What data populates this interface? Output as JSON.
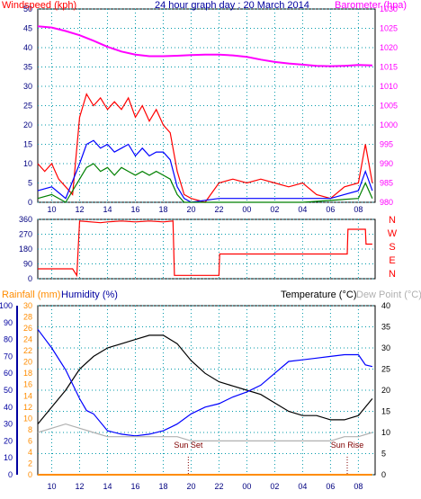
{
  "chart_data": [
    {
      "type": "line",
      "title": "24 hour graph day : 20 March 2014",
      "left_axis": {
        "label": "Windspeed (kph)",
        "ylim": [
          0,
          50
        ],
        "ticks": [
          0,
          5,
          10,
          15,
          20,
          25,
          30,
          35,
          40,
          45,
          50
        ]
      },
      "right_axis": {
        "label": "Barometer (hpa)",
        "ylim": [
          980,
          1030
        ],
        "ticks": [
          980,
          985,
          990,
          995,
          1000,
          1005,
          1010,
          1015,
          1020,
          1025,
          1030
        ]
      },
      "x_ticks": [
        "10",
        "12",
        "14",
        "16",
        "18",
        "20",
        "22",
        "00",
        "02",
        "04",
        "06",
        "08"
      ],
      "series": [
        {
          "values_axis": "left",
          "color": "#ff0000",
          "kind": "wind gust",
          "x": [
            9.0,
            9.5,
            10.0,
            10.5,
            11.0,
            11.5,
            12.0,
            12.5,
            13.0,
            13.5,
            14.0,
            14.5,
            15.0,
            15.5,
            16.0,
            16.5,
            17.0,
            17.5,
            18.0,
            18.5,
            19.0,
            19.5,
            20.0,
            21.0,
            22.0,
            23.0,
            24.0,
            25.0,
            26.0,
            27.0,
            28.0,
            29.0,
            30.0,
            31.0,
            32.0,
            32.5,
            33.0
          ],
          "values": [
            10,
            8,
            10,
            6,
            4,
            2,
            22,
            28,
            25,
            27,
            24,
            26,
            24,
            27,
            22,
            25,
            21,
            24,
            20,
            18,
            8,
            2,
            1,
            0,
            5,
            6,
            5,
            6,
            5,
            4,
            5,
            2,
            1,
            4,
            5,
            15,
            5
          ]
        },
        {
          "values_axis": "left",
          "color": "#0000ff",
          "kind": "wind average",
          "x": [
            9.0,
            10.0,
            11.0,
            12.0,
            12.5,
            13.0,
            13.5,
            14.0,
            14.5,
            15.0,
            15.5,
            16.0,
            16.5,
            17.0,
            17.5,
            18.0,
            18.5,
            19.0,
            19.5,
            20.0,
            22.0,
            24.0,
            26.0,
            28.0,
            30.0,
            32.0,
            32.5,
            33.0
          ],
          "values": [
            3,
            4,
            1,
            10,
            15,
            16,
            14,
            15,
            13,
            14,
            15,
            12,
            14,
            12,
            13,
            13,
            11,
            4,
            1,
            0,
            1,
            1,
            1,
            1,
            1,
            3,
            8,
            3
          ]
        },
        {
          "values_axis": "left",
          "color": "#008000",
          "kind": "wind lull",
          "x": [
            9.0,
            10.0,
            11.0,
            12.0,
            12.5,
            13.0,
            13.5,
            14.0,
            14.5,
            15.0,
            15.5,
            16.0,
            16.5,
            17.0,
            17.5,
            18.0,
            18.5,
            19.0,
            19.5,
            20.0,
            24.0,
            28.0,
            32.0,
            32.5,
            33.0
          ],
          "values": [
            1,
            2,
            0,
            6,
            9,
            10,
            8,
            9,
            7,
            9,
            8,
            7,
            8,
            7,
            8,
            7,
            6,
            2,
            0,
            0,
            0,
            0,
            1,
            5,
            1
          ]
        },
        {
          "values_axis": "right",
          "color": "#ff00ff",
          "kind": "barometer",
          "x": [
            9.0,
            10.0,
            11.0,
            12.0,
            13.0,
            14.0,
            15.0,
            16.0,
            17.0,
            18.0,
            19.0,
            20.0,
            21.0,
            22.0,
            23.0,
            24.0,
            25.0,
            26.0,
            27.0,
            28.0,
            29.0,
            30.0,
            31.0,
            32.0,
            33.0
          ],
          "values": [
            1025.5,
            1025.2,
            1024.3,
            1023.2,
            1021.8,
            1020.2,
            1019.0,
            1018.2,
            1017.8,
            1017.8,
            1017.9,
            1018.1,
            1018.2,
            1018.2,
            1018.0,
            1017.6,
            1016.9,
            1016.3,
            1015.9,
            1015.6,
            1015.3,
            1015.2,
            1015.3,
            1015.5,
            1015.4
          ]
        }
      ]
    },
    {
      "type": "line",
      "right_labels": [
        "N",
        "W",
        "S",
        "E",
        "N"
      ],
      "ylim": [
        0,
        360
      ],
      "ticks": [
        0,
        90,
        180,
        270,
        360
      ],
      "x_ticks": [
        "10",
        "12",
        "14",
        "16",
        "18",
        "20",
        "22",
        "00",
        "02",
        "04",
        "06",
        "08"
      ],
      "series": [
        {
          "color": "#ff0000",
          "kind": "wind direction",
          "x": [
            9.0,
            11.5,
            11.8,
            12.0,
            13.5,
            14.0,
            15.0,
            16.0,
            17.0,
            18.0,
            18.7,
            18.8,
            22.0,
            22.05,
            31.2,
            31.25,
            32.5,
            32.55,
            33.0
          ],
          "values": [
            60,
            60,
            20,
            350,
            340,
            345,
            350,
            345,
            350,
            345,
            350,
            20,
            20,
            150,
            150,
            300,
            300,
            210,
            210
          ]
        }
      ]
    },
    {
      "type": "line",
      "axis_labels": [
        "Rainfall (mm)",
        "Humidity (%)",
        "Temperature (°C)",
        "Dew Point (°C)"
      ],
      "rainfall_axis": {
        "ylim": [
          0,
          30
        ],
        "ticks": [
          0,
          2,
          4,
          6,
          8,
          10,
          12,
          14,
          16,
          18,
          20,
          22,
          24,
          26,
          28,
          30
        ]
      },
      "humidity_axis": {
        "ylim": [
          0,
          100
        ],
        "ticks": [
          0,
          10,
          20,
          30,
          40,
          50,
          60,
          70,
          80,
          90,
          100
        ]
      },
      "temperature_axis": {
        "ylim": [
          0,
          40
        ],
        "ticks": [
          0,
          5,
          10,
          15,
          20,
          25,
          30,
          35,
          40
        ]
      },
      "x_ticks": [
        "10",
        "12",
        "14",
        "16",
        "18",
        "20",
        "22",
        "00",
        "02",
        "04",
        "06",
        "08"
      ],
      "annotations": [
        {
          "label": "Sun Set",
          "at": 19.8
        },
        {
          "label": "Sun Rise",
          "at": 31.2
        }
      ],
      "series": [
        {
          "axis": "temperature",
          "color": "#000000",
          "kind": "temperature",
          "x": [
            9.0,
            10.0,
            11.0,
            12.0,
            13.0,
            14.0,
            15.0,
            16.0,
            17.0,
            18.0,
            19.0,
            20.0,
            21.0,
            22.0,
            23.0,
            24.0,
            25.0,
            26.0,
            27.0,
            28.0,
            29.0,
            30.0,
            31.0,
            32.0,
            33.0
          ],
          "values": [
            12,
            16,
            20,
            25,
            28,
            30,
            31,
            32,
            33,
            33,
            31,
            27,
            24,
            22,
            21,
            20,
            19,
            17,
            15,
            14,
            14,
            13,
            13,
            14,
            18
          ]
        },
        {
          "axis": "humidity",
          "color": "#0000ff",
          "kind": "humidity",
          "x": [
            9.0,
            10.0,
            11.0,
            12.0,
            12.5,
            13.0,
            14.0,
            15.0,
            16.0,
            17.0,
            18.0,
            18.5,
            19.0,
            20.0,
            21.0,
            22.0,
            23.0,
            24.0,
            25.0,
            26.0,
            27.0,
            28.0,
            29.0,
            30.0,
            31.0,
            32.0,
            32.5,
            33.0
          ],
          "values": [
            86,
            75,
            62,
            45,
            38,
            36,
            26,
            24,
            23,
            24,
            26,
            28,
            30,
            36,
            40,
            42,
            46,
            49,
            53,
            60,
            67,
            68,
            69,
            70,
            71,
            71,
            65,
            64
          ]
        },
        {
          "axis": "temperature",
          "color": "#b0b0b0",
          "kind": "dew point",
          "x": [
            9.0,
            10.0,
            11.0,
            12.0,
            13.0,
            14.0,
            15.0,
            16.0,
            17.0,
            18.0,
            19.0,
            20.0,
            21.0,
            22.0,
            23.0,
            24.0,
            25.0,
            26.0,
            27.0,
            28.0,
            29.0,
            30.0,
            31.0,
            32.0,
            33.0
          ],
          "values": [
            10,
            11,
            12,
            11,
            10,
            9,
            9,
            9,
            9,
            9,
            9,
            8,
            8,
            8,
            8,
            8,
            8,
            8,
            8,
            8,
            8,
            8,
            9,
            9,
            10
          ]
        },
        {
          "axis": "rainfall",
          "color": "#ff8c00",
          "kind": "rainfall",
          "x": [
            9.0,
            33.0
          ],
          "values": [
            0,
            0
          ]
        }
      ]
    }
  ]
}
